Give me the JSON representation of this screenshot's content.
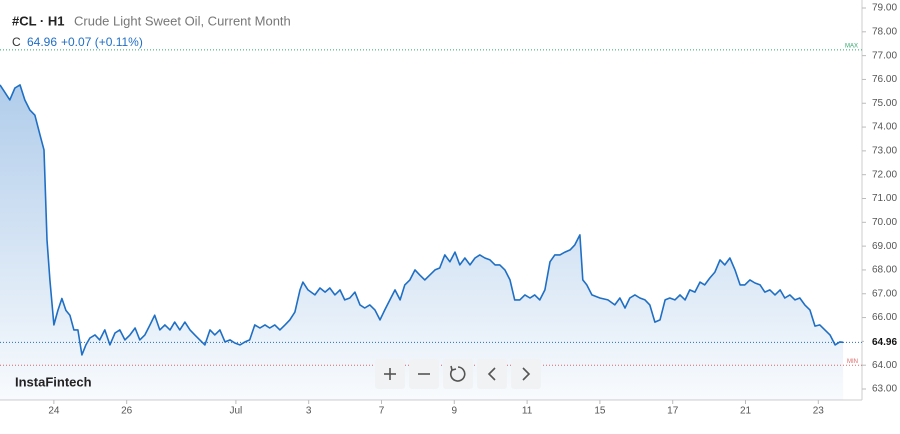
{
  "chart_data": {
    "type": "line",
    "symbol": "#CL · H1",
    "title": "Crude Light Sweet Oil, Current Month",
    "quote": {
      "label": "C",
      "close": 64.96,
      "change": "+0.07 (+0.11%)"
    },
    "watermark": "InstaFintech",
    "x": [
      -1.48,
      -1.35,
      -1.21,
      -1.07,
      -0.93,
      -0.8,
      -0.66,
      -0.52,
      -0.38,
      -0.27,
      -0.19,
      -0.11,
      0,
      0.11,
      0.22,
      0.33,
      0.44,
      0.55,
      0.66,
      0.77,
      0.88,
      0.99,
      1.13,
      1.26,
      1.4,
      1.54,
      1.68,
      1.81,
      1.95,
      2.09,
      2.23,
      2.36,
      2.5,
      2.64,
      2.77,
      2.91,
      3.05,
      3.19,
      3.32,
      3.46,
      3.6,
      3.74,
      3.87,
      4.01,
      4.15,
      4.29,
      4.42,
      4.56,
      4.7,
      4.84,
      4.97,
      5.11,
      5.25,
      5.38,
      5.52,
      5.66,
      5.8,
      5.93,
      6.07,
      6.21,
      6.35,
      6.48,
      6.62,
      6.76,
      6.84,
      6.98,
      7.17,
      7.31,
      7.45,
      7.58,
      7.72,
      7.86,
      7.99,
      8.13,
      8.27,
      8.41,
      8.54,
      8.68,
      8.82,
      8.96,
      9.09,
      9.23,
      9.37,
      9.51,
      9.64,
      9.78,
      9.92,
      10.05,
      10.19,
      10.33,
      10.47,
      10.6,
      10.74,
      10.88,
      11.02,
      11.15,
      11.29,
      11.43,
      11.57,
      11.7,
      11.84,
      11.98,
      12.12,
      12.25,
      12.39,
      12.53,
      12.66,
      12.8,
      12.94,
      13.08,
      13.21,
      13.35,
      13.49,
      13.63,
      13.76,
      13.9,
      14.04,
      14.18,
      14.31,
      14.45,
      14.53,
      14.64,
      14.78,
      15,
      15.22,
      15.41,
      15.55,
      15.69,
      15.82,
      15.96,
      16.1,
      16.24,
      16.37,
      16.51,
      16.65,
      16.79,
      16.92,
      17.06,
      17.2,
      17.34,
      17.47,
      17.61,
      17.75,
      17.88,
      18.02,
      18.16,
      18.3,
      18.43,
      18.57,
      18.71,
      18.85,
      18.98,
      19.12,
      19.26,
      19.4,
      19.53,
      19.67,
      19.81,
      19.95,
      20.08,
      20.22,
      20.36,
      20.49,
      20.63,
      20.77,
      20.91,
      21.04,
      21.18,
      21.32,
      21.46,
      21.59,
      21.68
    ],
    "series": [
      {
        "color": "#1f6fc5",
        "values": [
          75.77,
          75.47,
          75.14,
          75.64,
          75.77,
          75.14,
          74.72,
          74.5,
          73.67,
          73.04,
          69.26,
          67.58,
          65.69,
          66.3,
          66.8,
          66.3,
          66.1,
          65.48,
          65.48,
          64.43,
          64.85,
          65.14,
          65.27,
          65.06,
          65.48,
          64.85,
          65.35,
          65.48,
          65.06,
          65.27,
          65.56,
          65.06,
          65.27,
          65.69,
          66.1,
          65.48,
          65.69,
          65.48,
          65.81,
          65.48,
          65.81,
          65.48,
          65.27,
          65.06,
          64.85,
          65.48,
          65.27,
          65.48,
          64.98,
          65.06,
          64.93,
          64.85,
          64.98,
          65.06,
          65.69,
          65.56,
          65.69,
          65.56,
          65.69,
          65.48,
          65.69,
          65.9,
          66.23,
          67.16,
          67.49,
          67.16,
          66.95,
          67.24,
          67.07,
          67.24,
          66.95,
          67.16,
          66.74,
          66.82,
          67.07,
          66.53,
          66.4,
          66.53,
          66.32,
          65.9,
          66.32,
          66.74,
          67.16,
          66.74,
          67.37,
          67.58,
          68.0,
          67.79,
          67.58,
          67.79,
          68.0,
          68.08,
          68.63,
          68.34,
          68.75,
          68.21,
          68.5,
          68.21,
          68.5,
          68.63,
          68.5,
          68.42,
          68.21,
          68.21,
          68.0,
          67.58,
          66.74,
          66.74,
          66.95,
          66.82,
          66.95,
          66.74,
          67.16,
          68.34,
          68.63,
          68.63,
          68.75,
          68.84,
          69.05,
          69.47,
          67.58,
          67.37,
          66.95,
          66.82,
          66.74,
          66.53,
          66.82,
          66.4,
          66.82,
          66.95,
          66.82,
          66.74,
          66.53,
          65.81,
          65.9,
          66.74,
          66.82,
          66.74,
          66.95,
          66.74,
          67.16,
          67.07,
          67.49,
          67.37,
          67.66,
          67.91,
          68.42,
          68.21,
          68.5,
          68.0,
          67.37,
          67.37,
          67.58,
          67.45,
          67.37,
          67.07,
          67.16,
          66.95,
          67.16,
          66.82,
          66.95,
          66.74,
          66.82,
          66.53,
          66.32,
          65.64,
          65.69,
          65.48,
          65.27,
          64.85,
          64.98,
          64.96
        ]
      }
    ],
    "xlim": [
      -1.48,
      22.2
    ],
    "xticks": [
      {
        "value": 0,
        "label": "24"
      },
      {
        "value": 2,
        "label": "26"
      },
      {
        "value": 5,
        "label": "Jul"
      },
      {
        "value": 7,
        "label": "3"
      },
      {
        "value": 9,
        "label": "7"
      },
      {
        "value": 11,
        "label": "9"
      },
      {
        "value": 13,
        "label": "11"
      },
      {
        "value": 15,
        "label": "15"
      },
      {
        "value": 17,
        "label": "17"
      },
      {
        "value": 19,
        "label": "21"
      },
      {
        "value": 21,
        "label": "23"
      }
    ],
    "ylim": [
      63,
      79
    ],
    "yticks": [
      {
        "value": 63,
        "label": "63.00"
      },
      {
        "value": 64,
        "label": "64.00"
      },
      {
        "value": 65,
        "label": "65.00"
      },
      {
        "value": 66,
        "label": "66.00"
      },
      {
        "value": 67,
        "label": "67.00"
      },
      {
        "value": 68,
        "label": "68.00"
      },
      {
        "value": 69,
        "label": "69.00"
      },
      {
        "value": 70,
        "label": "70.00"
      },
      {
        "value": 71,
        "label": "71.00"
      },
      {
        "value": 72,
        "label": "72.00"
      },
      {
        "value": 73,
        "label": "73.00"
      },
      {
        "value": 74,
        "label": "74.00"
      },
      {
        "value": 75,
        "label": "75.00"
      },
      {
        "value": 76,
        "label": "76.00"
      },
      {
        "value": 77,
        "label": "77.00"
      },
      {
        "value": 78,
        "label": "78.00"
      },
      {
        "value": 79,
        "label": "79.00"
      }
    ],
    "last_price": 64.96,
    "max_line": {
      "value": 77.24,
      "label": "MAX",
      "color": "#2ea86b"
    },
    "min_line": {
      "value": 64.0,
      "label": "MIN",
      "color": "#e06666"
    }
  }
}
